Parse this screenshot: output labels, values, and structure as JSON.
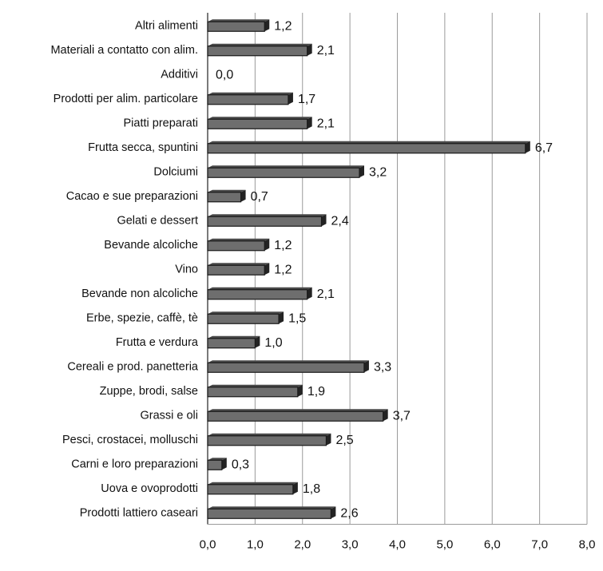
{
  "chart_data": {
    "type": "bar",
    "orientation": "horizontal",
    "categories": [
      "Altri alimenti",
      "Materiali a contatto con alim.",
      "Additivi",
      "Prodotti per alim. particolare",
      "Piatti preparati",
      "Frutta secca, spuntini",
      "Dolciumi",
      "Cacao e sue preparazioni",
      "Gelati e dessert",
      "Bevande alcoliche",
      "Vino",
      "Bevande non alcoliche",
      "Erbe, spezie, caffè, tè",
      "Frutta e verdura",
      "Cereali e prod. panetteria",
      "Zuppe, brodi, salse",
      "Grassi e oli",
      "Pesci, crostacei, molluschi",
      "Carni e loro preparazioni",
      "Uova e ovoprodotti",
      "Prodotti lattiero caseari"
    ],
    "values": [
      1.2,
      2.1,
      0.0,
      1.7,
      2.1,
      6.7,
      3.2,
      0.7,
      2.4,
      1.2,
      1.2,
      2.1,
      1.5,
      1.0,
      3.3,
      1.9,
      3.7,
      2.5,
      0.3,
      1.8,
      2.6
    ],
    "data_labels": [
      "1,2",
      "2,1",
      "0,0",
      "1,7",
      "2,1",
      "6,7",
      "3,2",
      "0,7",
      "2,4",
      "1,2",
      "1,2",
      "2,1",
      "1,5",
      "1,0",
      "3,3",
      "1,9",
      "3,7",
      "2,5",
      "0,3",
      "1,8",
      "2,6"
    ],
    "xticks": [
      0,
      1,
      2,
      3,
      4,
      5,
      6,
      7,
      8
    ],
    "xtick_labels": [
      "0,0",
      "1,0",
      "2,0",
      "3,0",
      "4,0",
      "5,0",
      "6,0",
      "7,0",
      "8,0"
    ],
    "xlim": [
      0,
      8
    ],
    "grid": true,
    "legend": "none",
    "colors": {
      "bar_face": "#6e6e6e",
      "bar_side": "#232323",
      "grid": "#9a9a9a",
      "text": "#111111"
    }
  }
}
